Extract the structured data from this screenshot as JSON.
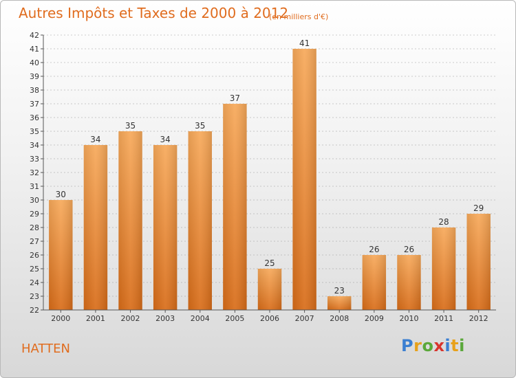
{
  "title": "Autres Impôts et Taxes de 2000 à 2012",
  "subtitle": "(en milliers d'€)",
  "commune": "HATTEN",
  "logo": {
    "text": "Proxiti",
    "colors": [
      "#3b7fd1",
      "#e8a11a",
      "#5aa83a",
      "#d8342c",
      "#3b7fd1",
      "#e8a11a",
      "#5aa83a"
    ]
  },
  "colors": {
    "bar": "#e8822b",
    "bar_light": "#f7a95a",
    "axis": "#555555",
    "grid": "#9a9a9a",
    "accent": "#e06c1e"
  },
  "chart_data": {
    "type": "bar",
    "title": "Autres Impôts et Taxes de 2000 à 2012",
    "categories": [
      "2000",
      "2001",
      "2002",
      "2003",
      "2004",
      "2005",
      "2006",
      "2007",
      "2008",
      "2009",
      "2010",
      "2011",
      "2012"
    ],
    "values": [
      30,
      34,
      35,
      34,
      35,
      37,
      25,
      41,
      23,
      26,
      26,
      28,
      29
    ],
    "ylim": [
      22,
      42
    ],
    "yticks": [
      22,
      23,
      24,
      25,
      26,
      27,
      28,
      29,
      30,
      31,
      32,
      33,
      34,
      35,
      36,
      37,
      38,
      39,
      40,
      41,
      42
    ],
    "grid": true,
    "data_labels": true
  }
}
